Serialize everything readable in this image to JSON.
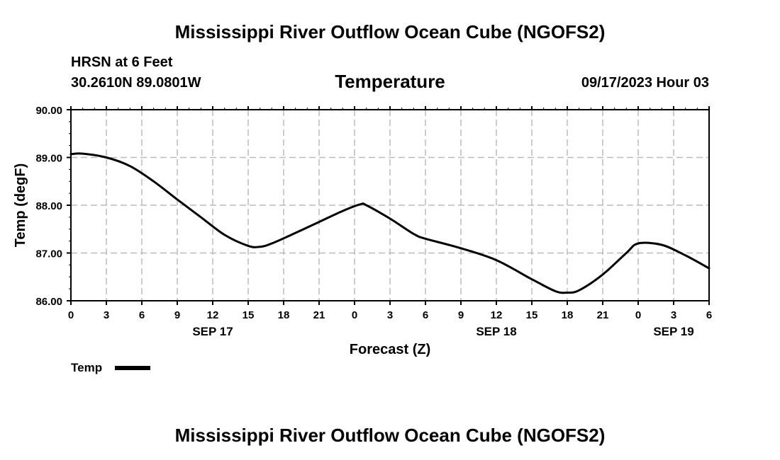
{
  "header": {
    "title": "Mississippi River Outflow Ocean Cube (NGOFS2)",
    "station": "HRSN at 6 Feet",
    "coords": "30.2610N  89.0801W",
    "subtitle": "Temperature",
    "datetime": "09/17/2023 Hour 03"
  },
  "footer": {
    "title": "Mississippi River Outflow Ocean Cube (NGOFS2)"
  },
  "chart_data": {
    "type": "line",
    "title": "Temperature",
    "xlabel": "Forecast (Z)",
    "ylabel": "Temp (degF)",
    "ylim": [
      86.0,
      90.0
    ],
    "y_ticks": [
      "86.00",
      "87.00",
      "88.00",
      "89.00",
      "90.00"
    ],
    "x_range_hours": [
      0,
      54
    ],
    "x_tick_labels": [
      "0",
      "3",
      "6",
      "9",
      "12",
      "15",
      "18",
      "21",
      "0",
      "3",
      "6",
      "9",
      "12",
      "15",
      "18",
      "21",
      "0",
      "3",
      "6"
    ],
    "date_labels": [
      {
        "label": "SEP 17",
        "hour": 12
      },
      {
        "label": "SEP 18",
        "hour": 36
      },
      {
        "label": "SEP 19",
        "hour": 51
      }
    ],
    "grid": true,
    "legend": "bottom-left",
    "series": [
      {
        "name": "Temp",
        "color": "#000000",
        "x": [
          0,
          1,
          3,
          5,
          7,
          9,
          11,
          13,
          15,
          16,
          17,
          19,
          21,
          23,
          24.5,
          25,
          27,
          29,
          30,
          33,
          36,
          39,
          41,
          42,
          43,
          45,
          47,
          48,
          50,
          52,
          54
        ],
        "values": [
          89.07,
          89.08,
          89.0,
          88.82,
          88.5,
          88.12,
          87.75,
          87.38,
          87.15,
          87.13,
          87.2,
          87.42,
          87.65,
          87.88,
          88.02,
          88.0,
          87.72,
          87.4,
          87.3,
          87.1,
          86.85,
          86.45,
          86.2,
          86.17,
          86.22,
          86.55,
          87.0,
          87.2,
          87.17,
          86.95,
          86.68
        ]
      }
    ]
  }
}
